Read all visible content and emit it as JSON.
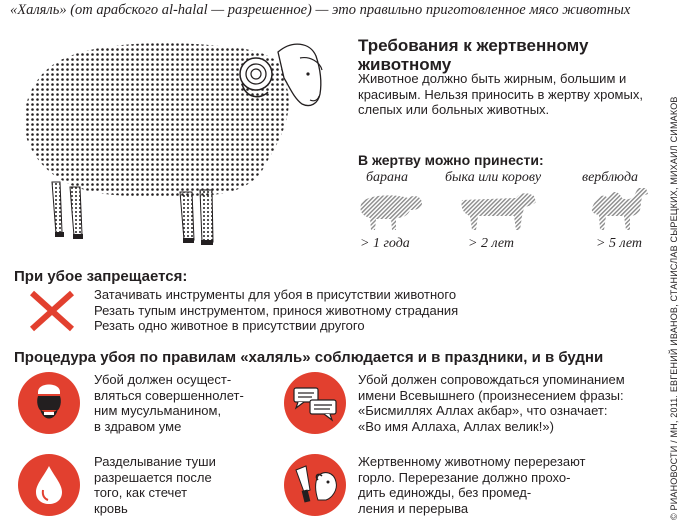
{
  "header": {
    "intro": "«Халяль» (от арабского al-halal — разрешенное) — это правильно приготовленное мясо животных"
  },
  "requirements": {
    "title": "Требования к жертвенному животному",
    "text": "Животное должно быть жирным, большим и красивым. Нельзя приносить в жертву хромых, слепых или больных животных."
  },
  "sacrifice": {
    "heading": "В жертву можно принести:",
    "animals": [
      {
        "name": "барана",
        "age": "> 1 года",
        "icon": "sheep-icon"
      },
      {
        "name": "быка или корову",
        "age": "> 2 лет",
        "icon": "cow-icon"
      },
      {
        "name": "верблюда",
        "age": "> 5 лет",
        "icon": "camel-icon"
      }
    ]
  },
  "forbidden": {
    "heading": "При убое запрещается:",
    "items": [
      "Затачивать инструменты для убоя в присутствии животного",
      "Резать тупым инструментом, принося животному страдания",
      "Резать одно животное  в присутствии другого"
    ]
  },
  "procedure": {
    "heading": "Процедура убоя по правилам «халяль» соблюдается и в праздники, и в будни",
    "rules": [
      {
        "icon": "muslim-man-icon",
        "lines": [
          "Убой должен осущест-",
          "вляться совершеннолет-",
          "ним мусульманином,",
          "в здравом уме"
        ]
      },
      {
        "icon": "speech-bubbles-icon",
        "lines": [
          "Убой должен сопровождаться упоминанием",
          "имени Всевышнего (произнесением фразы:",
          "«Бисмиллях Аллах акбар», что означает:",
          "«Во имя Аллаха, Аллах велик!»)"
        ]
      },
      {
        "icon": "blood-drop-icon",
        "lines": [
          "Разделывание туши",
          "разрешается после",
          "того, как стечет",
          "кровь"
        ]
      },
      {
        "icon": "knife-sheep-icon",
        "lines": [
          "Жертвенному животному перерезают",
          "горло. Перерезание должно прохо-",
          "дить единожды, без промед-",
          "ления и перерыва"
        ]
      }
    ]
  },
  "credit": "© РИАНОВОСТИ / МН, 2011. ЕВГЕНИЙ ИВАНОВ, СТАНИСЛАВ СЫРЕЦКИХ, МИХАИЛ СИМАКОВ",
  "colors": {
    "accent": "#e2402f",
    "text": "#231f20",
    "dots": "#231f20"
  }
}
